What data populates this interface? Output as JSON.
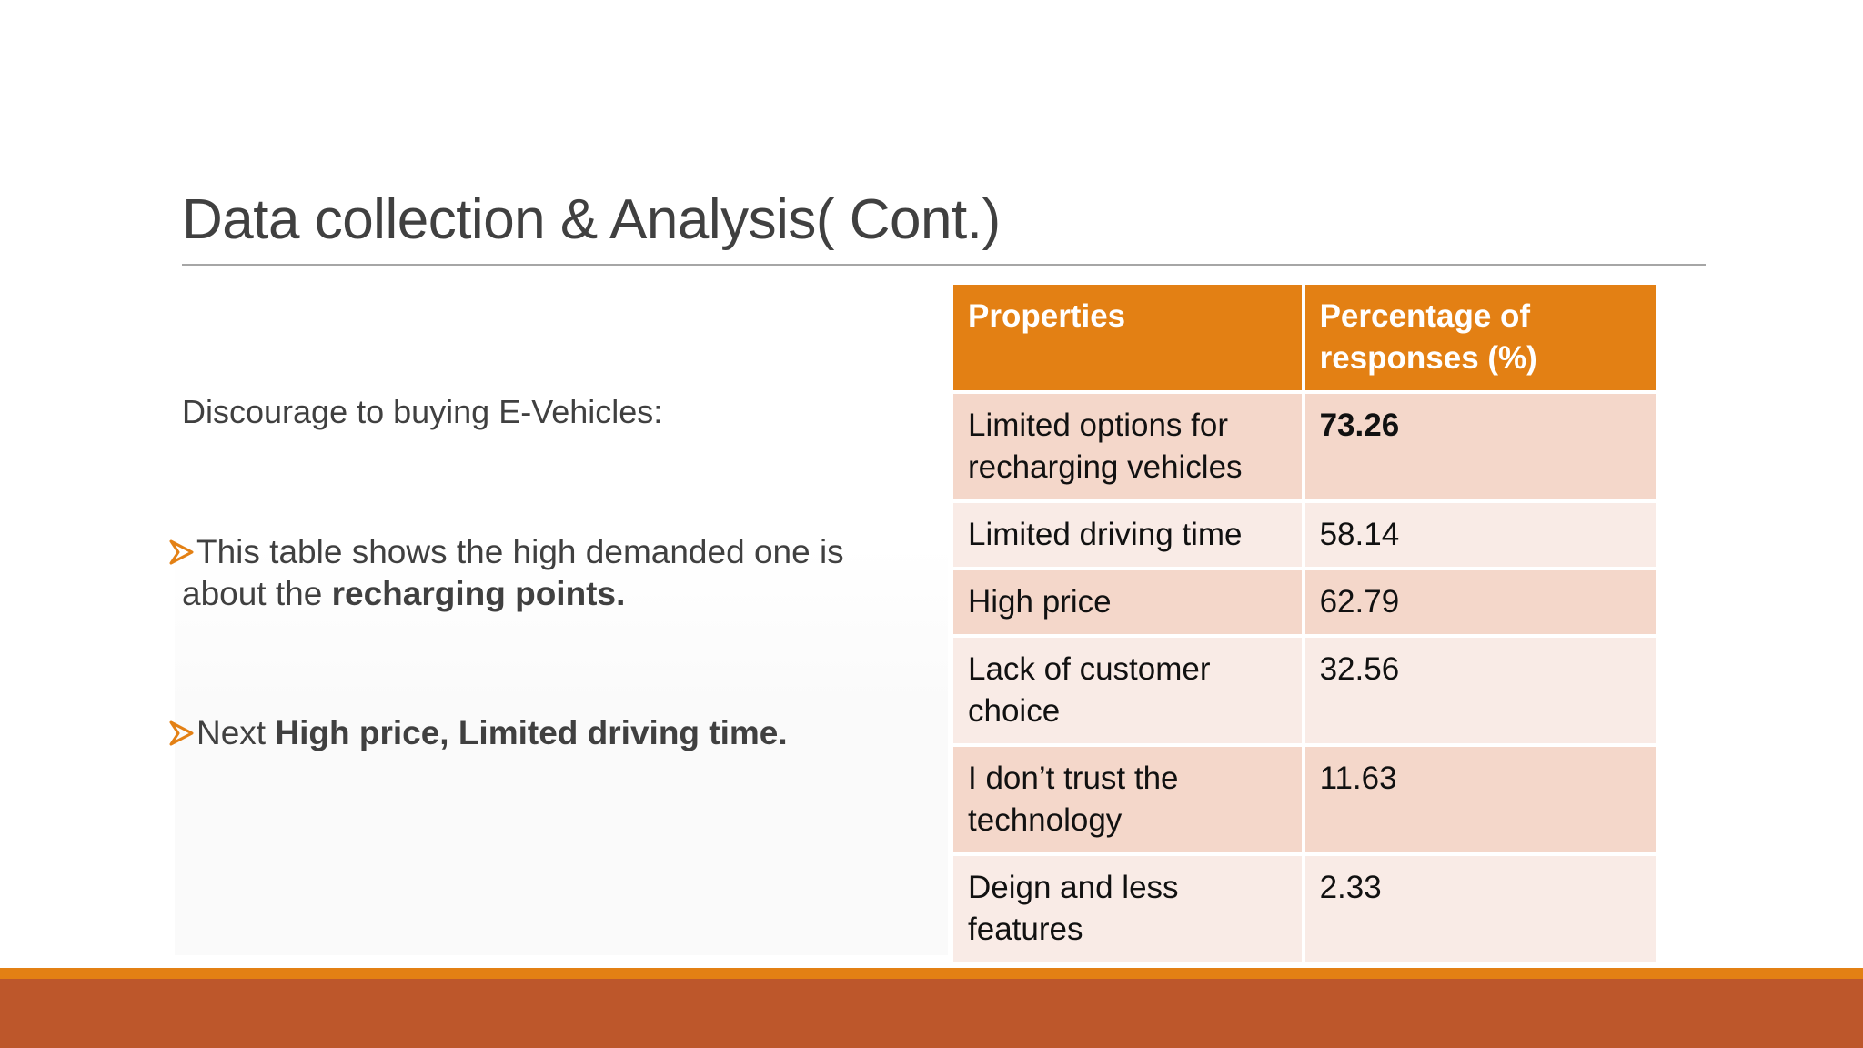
{
  "slide": {
    "title": "Data collection & Analysis( Cont.)",
    "subheading": "Discourage to buying E-Vehicles:",
    "bullets": [
      {
        "icon": "arrow-bullet-icon",
        "text_before": "This table shows the high demanded one is",
        "text_line2": "about the ",
        "text_bold": "recharging points."
      },
      {
        "icon": "arrow-bullet-icon",
        "text_before": "Next ",
        "text_bold": "High price, Limited driving time."
      }
    ]
  },
  "table": {
    "headers": [
      "Properties",
      "Percentage of responses (%)"
    ],
    "rows": [
      {
        "property": "Limited options for recharging vehicles",
        "percentage": "73.26"
      },
      {
        "property": "Limited driving time",
        "percentage": "58.14"
      },
      {
        "property": "High price",
        "percentage": "62.79"
      },
      {
        "property": "Lack of customer choice",
        "percentage": "32.56"
      },
      {
        "property": "I don’t trust the technology",
        "percentage": "11.63"
      },
      {
        "property": "Deign and less features",
        "percentage": "2.33"
      }
    ]
  },
  "colors": {
    "accent_orange": "#e38014",
    "footer_rust": "#bd572b",
    "row_dark": "#f4d7ca",
    "row_light": "#f9ebe6"
  }
}
